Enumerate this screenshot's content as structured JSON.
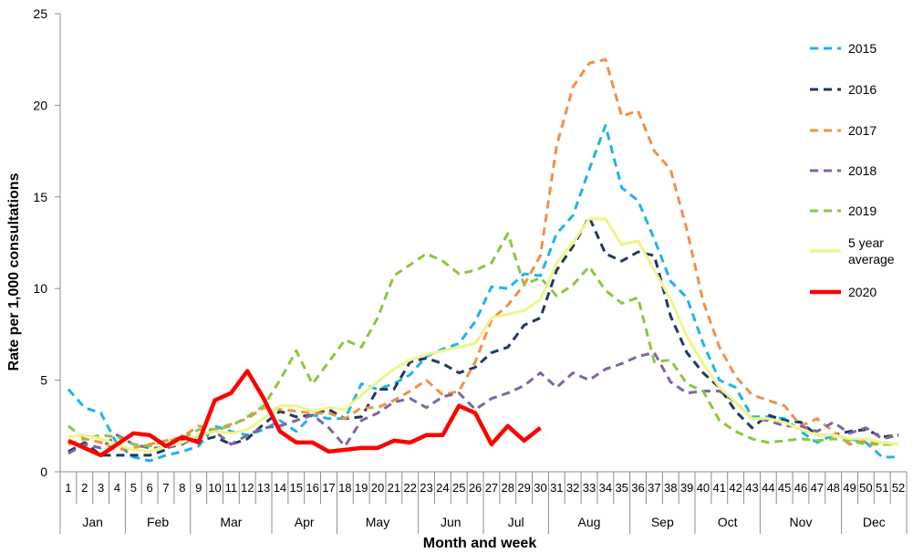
{
  "chart_data": {
    "type": "line",
    "xlabel": "Month and week",
    "ylabel": "Rate per 1,000 consultations",
    "ylim": [
      0,
      25
    ],
    "yticks": [
      0,
      5,
      10,
      15,
      20,
      25
    ],
    "weeks": [
      "1",
      "2",
      "3",
      "4",
      "5",
      "6",
      "7",
      "8",
      "9",
      "10",
      "11",
      "12",
      "13",
      "14",
      "15",
      "16",
      "17",
      "18",
      "19",
      "20",
      "21",
      "22",
      "23",
      "24",
      "25",
      "26",
      "27",
      "28",
      "29",
      "30",
      "31",
      "32",
      "33",
      "34",
      "35",
      "36",
      "37",
      "38",
      "39",
      "40",
      "41",
      "42",
      "43",
      "44",
      "45",
      "46",
      "47",
      "48",
      "49",
      "50",
      "51",
      "52"
    ],
    "months": [
      {
        "label": "Jan",
        "start_week": 1,
        "end_week": 4
      },
      {
        "label": "Feb",
        "start_week": 5,
        "end_week": 8
      },
      {
        "label": "Mar",
        "start_week": 9,
        "end_week": 13
      },
      {
        "label": "Apr",
        "start_week": 14,
        "end_week": 17
      },
      {
        "label": "May",
        "start_week": 18,
        "end_week": 22
      },
      {
        "label": "Jun",
        "start_week": 23,
        "end_week": 26
      },
      {
        "label": "Jul",
        "start_week": 27,
        "end_week": 30
      },
      {
        "label": "Aug",
        "start_week": 31,
        "end_week": 35
      },
      {
        "label": "Sep",
        "start_week": 36,
        "end_week": 39
      },
      {
        "label": "Oct",
        "start_week": 40,
        "end_week": 43
      },
      {
        "label": "Nov",
        "start_week": 44,
        "end_week": 48
      },
      {
        "label": "Dec",
        "start_week": 49,
        "end_week": 52
      }
    ],
    "series": [
      {
        "name": "2015",
        "color": "#1fb3e8",
        "dash": "dashed",
        "values": [
          4.5,
          3.5,
          3.2,
          1.5,
          0.8,
          0.6,
          0.9,
          1.1,
          1.4,
          2.5,
          2.2,
          2.0,
          2.3,
          2.8,
          2.2,
          3.1,
          2.9,
          2.9,
          4.8,
          4.5,
          4.8,
          5.3,
          6.3,
          6.7,
          7.0,
          8.2,
          10.1,
          10.0,
          10.8,
          10.7,
          13.0,
          14.0,
          16.5,
          18.9,
          15.5,
          14.8,
          12.7,
          10.4,
          9.5,
          7.0,
          5.0,
          4.6,
          3.0,
          3.0,
          2.9,
          2.2,
          1.6,
          2.0,
          1.8,
          1.6,
          0.8,
          0.8
        ]
      },
      {
        "name": "2016",
        "color": "#1f3a5f",
        "dash": "dashed",
        "values": [
          1.1,
          1.6,
          0.9,
          0.9,
          0.9,
          0.9,
          1.2,
          1.8,
          1.7,
          1.9,
          1.5,
          1.8,
          2.6,
          3.3,
          3.0,
          3.1,
          3.4,
          2.9,
          3.0,
          4.5,
          4.5,
          6.0,
          6.2,
          5.9,
          5.4,
          5.7,
          6.5,
          6.8,
          8.0,
          8.4,
          11.0,
          12.3,
          13.9,
          11.9,
          11.5,
          12.0,
          11.8,
          8.5,
          6.5,
          5.4,
          4.6,
          3.3,
          2.4,
          3.1,
          2.8,
          2.7,
          2.0,
          2.0,
          2.2,
          2.3,
          1.9,
          2.0
        ]
      },
      {
        "name": "2017",
        "color": "#f0914a",
        "dash": "dashed",
        "values": [
          1.5,
          1.8,
          1.6,
          1.2,
          1.3,
          1.5,
          1.7,
          1.9,
          2.5,
          2.3,
          2.6,
          2.9,
          3.5,
          3.4,
          3.3,
          3.2,
          3.2,
          2.9,
          3.5,
          3.5,
          3.9,
          4.4,
          5.0,
          4.2,
          4.4,
          6.0,
          8.3,
          9.1,
          10.2,
          11.8,
          17.8,
          21.0,
          22.3,
          22.5,
          19.4,
          19.7,
          17.5,
          16.5,
          13.2,
          9.3,
          6.8,
          5.2,
          4.2,
          3.9,
          3.6,
          2.5,
          2.9,
          2.2,
          1.5,
          1.7,
          1.5,
          1.5
        ]
      },
      {
        "name": "2018",
        "color": "#8064a2",
        "dash": "dashed",
        "values": [
          1.0,
          1.5,
          1.3,
          2.0,
          1.5,
          1.3,
          1.3,
          1.5,
          2.0,
          2.2,
          1.5,
          2.0,
          2.4,
          2.5,
          2.8,
          3.1,
          2.4,
          1.4,
          2.8,
          3.2,
          3.8,
          4.0,
          3.5,
          4.1,
          4.3,
          3.4,
          4.0,
          4.3,
          4.7,
          5.4,
          4.6,
          5.4,
          5.0,
          5.6,
          5.9,
          6.3,
          6.5,
          4.9,
          4.3,
          4.4,
          4.4,
          3.8,
          2.9,
          2.8,
          2.5,
          2.5,
          2.2,
          2.7,
          2.1,
          2.4,
          1.8,
          2.0
        ]
      },
      {
        "name": "2019",
        "color": "#8dc63f",
        "dash": "dashed",
        "values": [
          2.5,
          1.8,
          2.0,
          1.9,
          1.5,
          1.4,
          1.7,
          1.8,
          2.3,
          2.3,
          2.5,
          3.0,
          3.6,
          5.0,
          6.6,
          4.8,
          6.0,
          7.2,
          6.8,
          8.4,
          10.7,
          11.3,
          11.9,
          11.5,
          10.8,
          11.0,
          11.4,
          13.0,
          10.2,
          10.6,
          9.6,
          10.2,
          11.2,
          9.9,
          9.2,
          9.5,
          6.0,
          6.1,
          4.8,
          4.4,
          2.8,
          2.2,
          1.8,
          1.6,
          1.7,
          1.8,
          1.7,
          1.8,
          1.7,
          1.5,
          1.5,
          1.5
        ]
      },
      {
        "name": "5 year average",
        "color": "#eef58a",
        "dash": "solid",
        "values": [
          1.9,
          2.0,
          1.8,
          1.5,
          1.2,
          1.1,
          1.4,
          1.6,
          2.0,
          2.2,
          2.1,
          2.3,
          2.9,
          3.6,
          3.6,
          3.3,
          3.5,
          3.4,
          4.2,
          4.9,
          5.6,
          6.1,
          6.4,
          6.6,
          6.8,
          7.0,
          8.4,
          8.6,
          8.8,
          9.4,
          11.4,
          12.5,
          13.8,
          13.8,
          12.4,
          12.6,
          11.0,
          9.4,
          7.4,
          5.9,
          4.6,
          3.8,
          2.9,
          2.9,
          2.7,
          2.3,
          2.0,
          2.0,
          1.8,
          1.8,
          1.6,
          1.5
        ]
      },
      {
        "name": "2020",
        "color": "#ff0000",
        "dash": "bold",
        "values": [
          1.7,
          1.3,
          0.9,
          1.5,
          2.1,
          2.0,
          1.4,
          1.9,
          1.6,
          3.9,
          4.3,
          5.5,
          4.0,
          2.2,
          1.6,
          1.6,
          1.1,
          1.2,
          1.3,
          1.3,
          1.7,
          1.6,
          2.0,
          2.0,
          3.6,
          3.2,
          1.5,
          2.5,
          1.7,
          2.4,
          null,
          null,
          null,
          null,
          null,
          null,
          null,
          null,
          null,
          null,
          null,
          null,
          null,
          null,
          null,
          null,
          null,
          null,
          null,
          null,
          null,
          null
        ]
      }
    ],
    "legend_position": "right",
    "grid": false
  }
}
